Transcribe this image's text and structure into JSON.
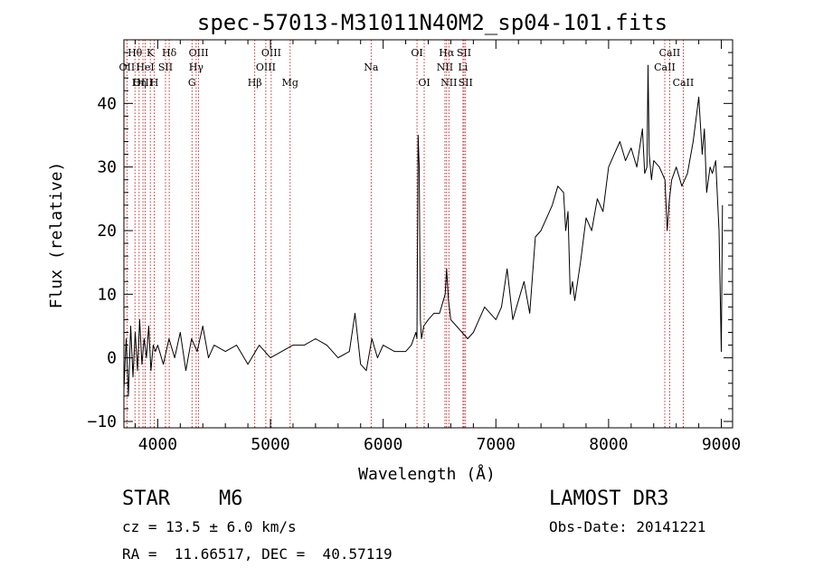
{
  "chart_data": {
    "type": "line",
    "title": "spec-57013-M31011N40M2_sp04-101.fits",
    "xlabel": "Wavelength (Å)",
    "ylabel": "Flux (relative)",
    "xlim": [
      3700,
      9100
    ],
    "ylim": [
      -11,
      50
    ],
    "xticks": [
      4000,
      5000,
      6000,
      7000,
      8000,
      9000
    ],
    "xtick_labels": [
      "4000",
      "5000",
      "6000",
      "7000",
      "8000",
      "9000"
    ],
    "yticks": [
      -10,
      0,
      10,
      20,
      30,
      40
    ],
    "ytick_labels": [
      "−10",
      "0",
      "10",
      "20",
      "30",
      "40"
    ],
    "grid": false,
    "series": [
      {
        "name": "spectrum",
        "x": [
          3700,
          3720,
          3740,
          3760,
          3780,
          3800,
          3820,
          3840,
          3860,
          3880,
          3900,
          3920,
          3940,
          3960,
          3980,
          4000,
          4050,
          4100,
          4150,
          4200,
          4250,
          4300,
          4350,
          4400,
          4450,
          4500,
          4600,
          4700,
          4800,
          4900,
          5000,
          5100,
          5200,
          5300,
          5400,
          5500,
          5600,
          5700,
          5750,
          5800,
          5850,
          5900,
          5950,
          6000,
          6100,
          6200,
          6250,
          6290,
          6300,
          6310,
          6320,
          6330,
          6340,
          6360,
          6400,
          6450,
          6500,
          6550,
          6563,
          6580,
          6600,
          6650,
          6700,
          6750,
          6800,
          6850,
          6900,
          6950,
          7000,
          7050,
          7100,
          7150,
          7200,
          7250,
          7300,
          7350,
          7400,
          7450,
          7500,
          7550,
          7600,
          7620,
          7640,
          7660,
          7680,
          7700,
          7750,
          7800,
          7850,
          7900,
          7950,
          8000,
          8050,
          8100,
          8150,
          8200,
          8250,
          8300,
          8320,
          8340,
          8350,
          8360,
          8380,
          8400,
          8450,
          8500,
          8520,
          8540,
          8560,
          8600,
          8650,
          8700,
          8750,
          8800,
          8830,
          8850,
          8870,
          8900,
          8920,
          8950,
          8980,
          9000,
          9010
        ],
        "y": [
          -5,
          3,
          -6,
          5,
          -3,
          4,
          -2,
          6,
          -1,
          3,
          0,
          5,
          -2,
          2,
          1,
          2,
          -1,
          3,
          0,
          4,
          -2,
          3,
          1,
          5,
          0,
          2,
          1,
          2,
          -1,
          2,
          0,
          1,
          2,
          2,
          3,
          2,
          0,
          1,
          7,
          -1,
          -2,
          3,
          0,
          2,
          1,
          1,
          2,
          4,
          3,
          35,
          30,
          6,
          3,
          5,
          6,
          7,
          7,
          10,
          14,
          9,
          6,
          5,
          4,
          3,
          4,
          6,
          8,
          7,
          6,
          8,
          14,
          6,
          9,
          12,
          7,
          19,
          20,
          22,
          24,
          27,
          26,
          20,
          23,
          10,
          12,
          9,
          15,
          22,
          20,
          25,
          23,
          30,
          32,
          34,
          31,
          33,
          30,
          36,
          29,
          30,
          46,
          32,
          28,
          31,
          30,
          28,
          20,
          25,
          28,
          30,
          27,
          29,
          34,
          41,
          32,
          36,
          26,
          30,
          29,
          31,
          20,
          1,
          24
        ]
      }
    ],
    "lines": [
      {
        "name": "Hθ",
        "x": 3798,
        "row": 1
      },
      {
        "name": "OII",
        "x": 3727,
        "row": 2
      },
      {
        "name": "OIII",
        "x": 3869,
        "row": 3
      },
      {
        "name": "K",
        "x": 3934,
        "row": 1
      },
      {
        "name": "HeI",
        "x": 3889,
        "row": 2
      },
      {
        "name": "Hη",
        "x": 3835,
        "row": 3
      },
      {
        "name": "SII",
        "x": 4069,
        "row": 2
      },
      {
        "name": "H",
        "x": 3969,
        "row": 3
      },
      {
        "name": "Hδ",
        "x": 4102,
        "row": 1
      },
      {
        "name": "OIII",
        "x": 4363,
        "row": 1
      },
      {
        "name": "Hγ",
        "x": 4341,
        "row": 2
      },
      {
        "name": "G",
        "x": 4304,
        "row": 3
      },
      {
        "name": "Hβ",
        "x": 4861,
        "row": 3
      },
      {
        "name": "OIII",
        "x": 5007,
        "row": 1
      },
      {
        "name": "OIII",
        "x": 4959,
        "row": 2
      },
      {
        "name": "Mg",
        "x": 5175,
        "row": 3
      },
      {
        "name": "Na",
        "x": 5893,
        "row": 2
      },
      {
        "name": "OI",
        "x": 6300,
        "row": 1
      },
      {
        "name": "OI",
        "x": 6364,
        "row": 3
      },
      {
        "name": "Hα",
        "x": 6563,
        "row": 1
      },
      {
        "name": "NII",
        "x": 6548,
        "row": 2
      },
      {
        "name": "NII",
        "x": 6583,
        "row": 3
      },
      {
        "name": "SII",
        "x": 6717,
        "row": 1
      },
      {
        "name": "Li",
        "x": 6708,
        "row": 2
      },
      {
        "name": "SII",
        "x": 6731,
        "row": 3
      },
      {
        "name": "CaII",
        "x": 8542,
        "row": 1
      },
      {
        "name": "CaII",
        "x": 8498,
        "row": 2
      },
      {
        "name": "CaII",
        "x": 8662,
        "row": 3
      }
    ]
  },
  "info": {
    "object_class": "STAR",
    "subclass": "M6",
    "survey": "LAMOST DR3",
    "redshift_line": "cz = 13.5 ± 6.0 km/s",
    "obs_date": "Obs-Date: 20141221",
    "coords": "RA =  11.66517, DEC =  40.57119"
  },
  "colors": {
    "line_marker": "#c00000",
    "spectrum": "#000000"
  }
}
